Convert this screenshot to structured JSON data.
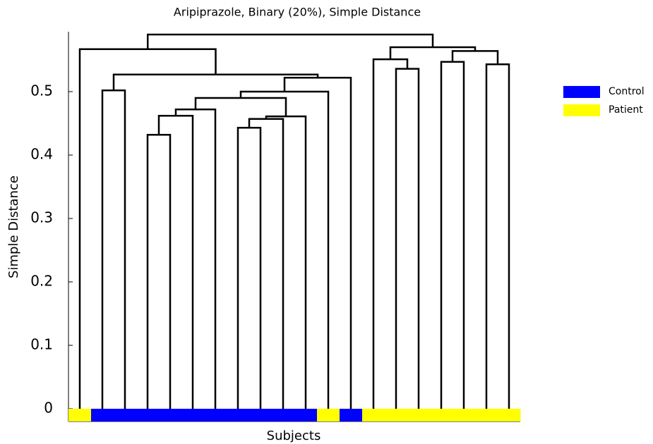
{
  "chart_data": {
    "type": "dendrogram",
    "title": "Aripiprazole, Binary (20%), Simple Distance",
    "xlabel": "Subjects",
    "ylabel": "Simple Distance",
    "ylim": [
      -0.02,
      0.6
    ],
    "yticks": [
      0,
      0.1,
      0.2,
      0.3,
      0.4,
      0.5
    ],
    "line_color": "#000000",
    "groups": [
      {
        "name": "Control",
        "color": "#0000ff"
      },
      {
        "name": "Patient",
        "color": "#ffff00"
      }
    ],
    "leaf_group": [
      1,
      0,
      0,
      0,
      0,
      0,
      0,
      0,
      0,
      0,
      0,
      1,
      0,
      1,
      1,
      1,
      1,
      1,
      1,
      1
    ],
    "merges": [
      {
        "left": 3,
        "right": 4,
        "height": 0.432
      },
      {
        "left": 20,
        "right": 5,
        "height": 0.462
      },
      {
        "left": 21,
        "right": 6,
        "height": 0.472
      },
      {
        "left": 7,
        "right": 8,
        "height": 0.443
      },
      {
        "left": 23,
        "right": 9,
        "height": 0.457
      },
      {
        "left": 24,
        "right": 10,
        "height": 0.461
      },
      {
        "left": 22,
        "right": 25,
        "height": 0.49
      },
      {
        "left": 26,
        "right": 11,
        "height": 0.5
      },
      {
        "left": 1,
        "right": 2,
        "height": 0.502
      },
      {
        "left": 27,
        "right": 12,
        "height": 0.522
      },
      {
        "left": 28,
        "right": 29,
        "height": 0.527
      },
      {
        "left": 0,
        "right": 30,
        "height": 0.567
      },
      {
        "left": 14,
        "right": 15,
        "height": 0.536
      },
      {
        "left": 13,
        "right": 32,
        "height": 0.551
      },
      {
        "left": 16,
        "right": 17,
        "height": 0.547
      },
      {
        "left": 18,
        "right": 19,
        "height": 0.543
      },
      {
        "left": 34,
        "right": 35,
        "height": 0.564
      },
      {
        "left": 33,
        "right": 36,
        "height": 0.57
      },
      {
        "left": 31,
        "right": 37,
        "height": 0.59
      }
    ]
  }
}
